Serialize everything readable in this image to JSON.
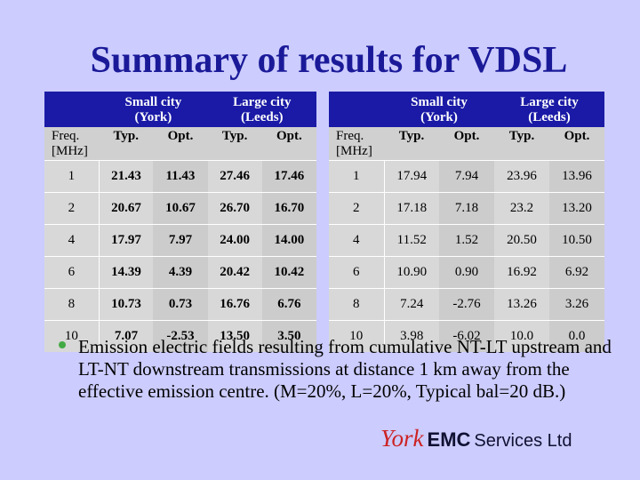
{
  "title": "Summary of results for VDSL",
  "tables": [
    {
      "groups": [
        {
          "line1": "Small city",
          "line2": "(York)"
        },
        {
          "line1": "Large city",
          "line2": "(Leeds)"
        }
      ],
      "freq_header": {
        "line1": "Freq.",
        "line2": "[MHz]"
      },
      "sub_headers": [
        "Typ.",
        "Opt.",
        "Typ.",
        "Opt."
      ],
      "rows": [
        [
          "1",
          "21.43",
          "11.43",
          "27.46",
          "17.46"
        ],
        [
          "2",
          "20.67",
          "10.67",
          "26.70",
          "16.70"
        ],
        [
          "4",
          "17.97",
          "7.97",
          "24.00",
          "14.00"
        ],
        [
          "6",
          "14.39",
          "4.39",
          "20.42",
          "10.42"
        ],
        [
          "8",
          "10.73",
          "0.73",
          "16.76",
          "6.76"
        ],
        [
          "10",
          "7.07",
          "-2.53",
          "13.50",
          "3.50"
        ]
      ]
    },
    {
      "groups": [
        {
          "line1": "Small city",
          "line2": "(York)"
        },
        {
          "line1": "Large city",
          "line2": "(Leeds)"
        }
      ],
      "freq_header": {
        "line1": "Freq.",
        "line2": "[MHz]"
      },
      "sub_headers": [
        "Typ.",
        "Opt.",
        "Typ.",
        "Opt."
      ],
      "rows": [
        [
          "1",
          "17.94",
          "7.94",
          "23.96",
          "13.96"
        ],
        [
          "2",
          "17.18",
          "7.18",
          "23.2",
          "13.20"
        ],
        [
          "4",
          "11.52",
          "1.52",
          "20.50",
          "10.50"
        ],
        [
          "6",
          "10.90",
          "0.90",
          "16.92",
          "6.92"
        ],
        [
          "8",
          "7.24",
          "-2.76",
          "13.26",
          "3.26"
        ],
        [
          "10",
          "3.98",
          "-6.02",
          "10.0",
          "0.0"
        ]
      ]
    }
  ],
  "note": "Emission electric fields resulting from cumulative NT-LT upstream and LT-NT downstream transmissions at distance 1 km away from the effective emission centre. (M=20%, L=20%, Typical bal=20 dB.)",
  "logo": {
    "york": "York",
    "emc": "EMC",
    "services": "Services Ltd"
  }
}
